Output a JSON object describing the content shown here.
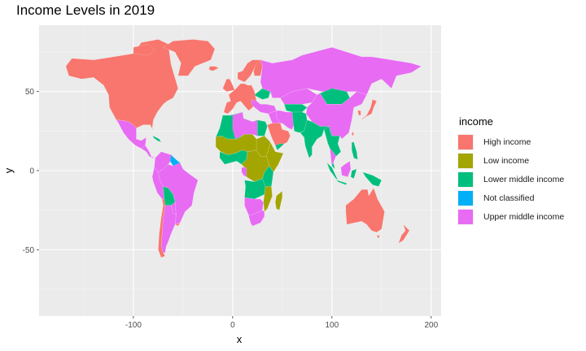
{
  "chart_data": {
    "type": "map",
    "title": "Income Levels in 2019",
    "xlabel": "x",
    "ylabel": "y",
    "xlim": [
      -195,
      210
    ],
    "ylim": [
      -92,
      92
    ],
    "x_ticks": [
      -100,
      0,
      100,
      200
    ],
    "y_ticks": [
      -50,
      0,
      50
    ],
    "grid": true,
    "legend_position": "right",
    "legend": {
      "title": "income",
      "categories": [
        {
          "label": "High income",
          "color": "#F8766D"
        },
        {
          "label": "Low income",
          "color": "#A3A500"
        },
        {
          "label": "Lower middle income",
          "color": "#00BF7D"
        },
        {
          "label": "Not classified",
          "color": "#00B0F6"
        },
        {
          "label": "Upper middle income",
          "color": "#E76BF3"
        }
      ]
    }
  }
}
